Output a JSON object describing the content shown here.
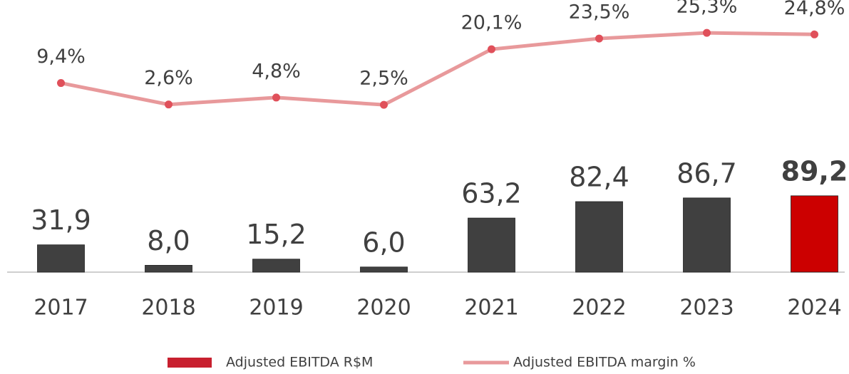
{
  "chart_data": {
    "type": "bar-line",
    "categories": [
      "2017",
      "2018",
      "2019",
      "2020",
      "2021",
      "2022",
      "2023",
      "2024"
    ],
    "ylim": [
      0,
      318
    ],
    "y2lim": [
      -50.5,
      35.7
    ],
    "series": [
      {
        "name": "Adjusted EBITDA R$M",
        "type": "bar",
        "color": "#c8202f",
        "colors": [
          "#404040",
          "#404040",
          "#404040",
          "#404040",
          "#404040",
          "#404040",
          "#404040",
          "#cc0000"
        ],
        "label_bold": [
          false,
          false,
          false,
          false,
          false,
          false,
          false,
          true
        ],
        "values": [
          31.9,
          8.0,
          15.2,
          6.0,
          63.2,
          82.4,
          86.7,
          89.2
        ],
        "value_labels": [
          "31,9",
          "8,0",
          "15,2",
          "6,0",
          "63,2",
          "82,4",
          "86,7",
          "89,2"
        ]
      },
      {
        "name": "Adjusted EBITDA margin %",
        "type": "line",
        "axis": "y2",
        "color": "#e8999b",
        "marker_color": "#e0505a",
        "values": [
          9.4,
          2.6,
          4.8,
          2.5,
          20.1,
          23.5,
          25.3,
          24.8
        ],
        "value_labels": [
          "9,4%",
          "2,6%",
          "4,8%",
          "2,5%",
          "20,1%",
          "23,5%",
          "25,3%",
          "24,8%"
        ]
      }
    ]
  }
}
